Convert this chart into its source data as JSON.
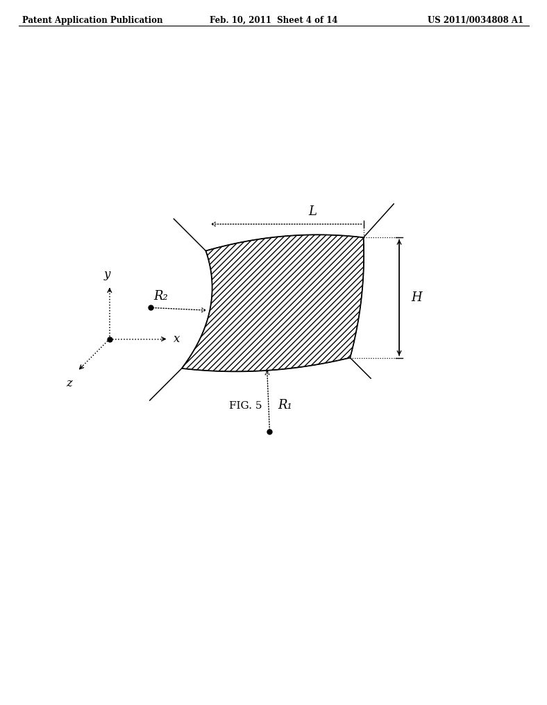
{
  "bg_color": "#ffffff",
  "line_color": "#000000",
  "header_left": "Patent Application Publication",
  "header_center": "Feb. 10, 2011  Sheet 4 of 14",
  "header_right": "US 2011/0034808 A1",
  "fig_label": "FIG. 5",
  "label_L": "L",
  "label_H": "H",
  "label_R1": "R₁",
  "label_R2": "R₂",
  "label_x": "x",
  "label_y": "y",
  "label_z": "z"
}
